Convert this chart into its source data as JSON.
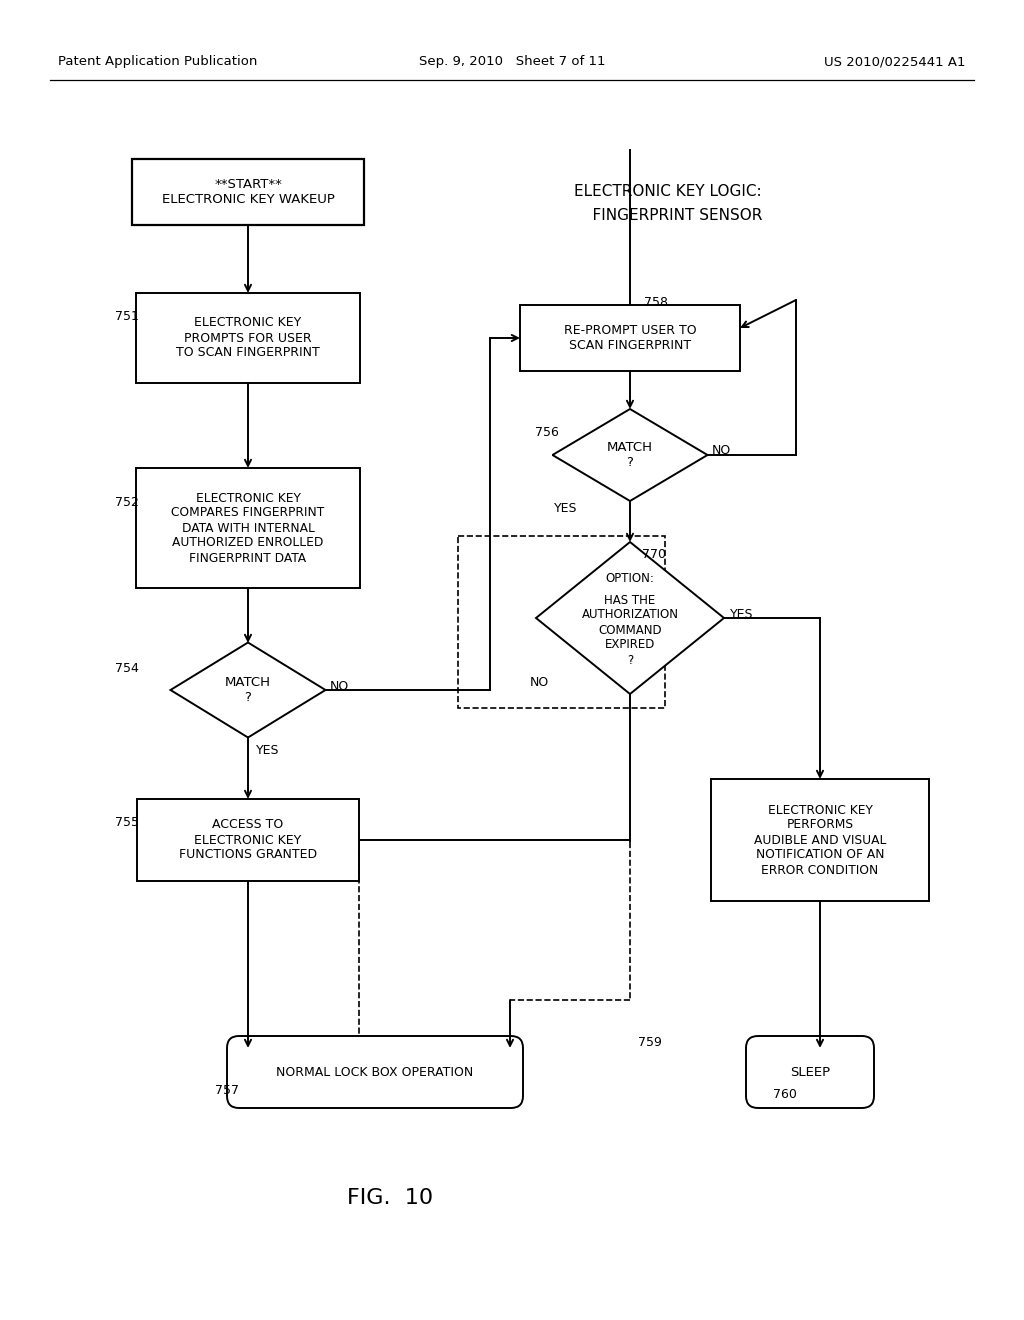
{
  "header_left": "Patent Application Publication",
  "header_center": "Sep. 9, 2010   Sheet 7 of 11",
  "header_right": "US 2010/0225441 A1",
  "section_title_1": "ELECTRONIC KEY LOGIC:",
  "section_title_2": "    FINGERPRINT SENSOR",
  "fig_label": "FIG.  10",
  "bg": "#ffffff",
  "node_start": "**START**\nELECTRONIC KEY WAKEUP",
  "node_751": "ELECTRONIC KEY\nPROMPTS FOR USER\nTO SCAN FINGERPRINT",
  "node_752": "ELECTRONIC KEY\nCOMPARES FINGERPRINT\nDATA WITH INTERNAL\nAUTHORIZED ENROLLED\nFINGERPRINT DATA",
  "node_754": "MATCH\n?",
  "node_755": "ACCESS TO\nELECTRONIC KEY\nFUNCTIONS GRANTED",
  "node_758": "RE-PROMPT USER TO\nSCAN FINGERPRINT",
  "node_756": "MATCH\n?",
  "node_770_line1": "OPTION:",
  "node_770_rest": "HAS THE\nAUTHORIZATION\nCOMMAND\nEXPIRED\n?",
  "node_err": "ELECTRONIC KEY\nPERFORMS\nAUDIBLE AND VISUAL\nNOTIFICATION OF AN\nERROR CONDITION",
  "node_norm": "NORMAL LOCK BOX OPERATION",
  "node_sleep": "SLEEP",
  "lbl_751": "751",
  "lbl_752": "752",
  "lbl_754": "754",
  "lbl_755": "755",
  "lbl_758": "758",
  "lbl_756": "756",
  "lbl_770": "770",
  "lbl_757": "757",
  "lbl_759": "759",
  "lbl_760": "760"
}
